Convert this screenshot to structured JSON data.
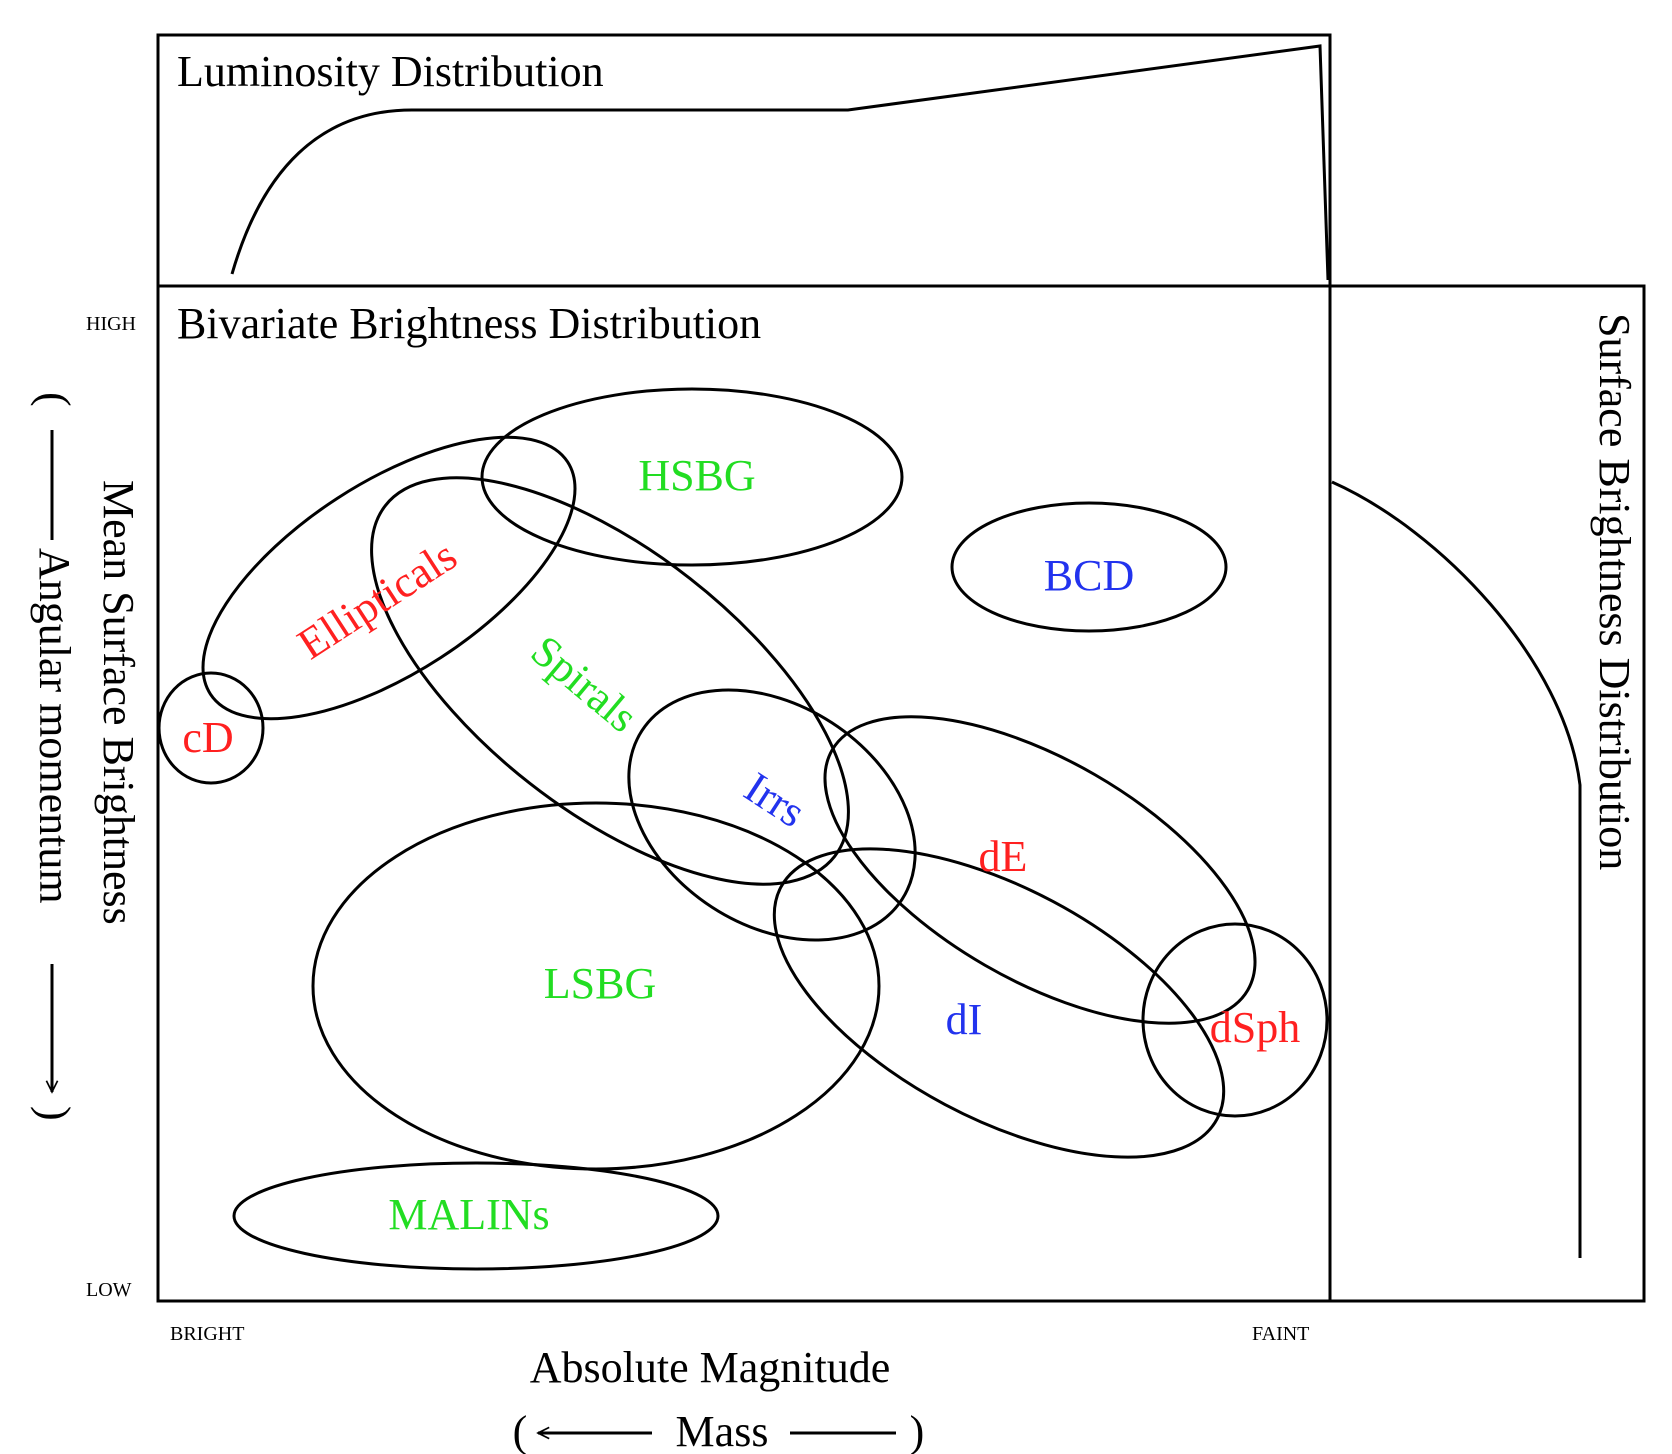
{
  "colors": {
    "red": "#ff2020",
    "green": "#22dd22",
    "blue": "#2233ee",
    "line": "#000000"
  },
  "panels": {
    "luminosity_title": "Luminosity Distribution",
    "bivariate_title": "Bivariate Brightness Distribution",
    "surface_title": "Surface Brightness Distribution"
  },
  "axes": {
    "x_label": "Absolute Magnitude",
    "x_sub_open": "(",
    "x_sub_word": "Mass",
    "x_sub_close": ")",
    "x_low_tick": "BRIGHT",
    "x_high_tick": "FAINT",
    "y_label": "Mean Surface Brightness",
    "y_sub_open": "(",
    "y_sub_word": "Angular momentum",
    "y_sub_close": ")",
    "y_high_tick": "HIGH",
    "y_low_tick": "LOW"
  },
  "galaxy_classes": [
    {
      "name": "HSBG",
      "color": "green"
    },
    {
      "name": "BCD",
      "color": "blue"
    },
    {
      "name": "Ellipticals",
      "color": "red"
    },
    {
      "name": "Spirals",
      "color": "green"
    },
    {
      "name": "cD",
      "color": "red"
    },
    {
      "name": "Irrs",
      "color": "blue"
    },
    {
      "name": "dE",
      "color": "red"
    },
    {
      "name": "LSBG",
      "color": "green"
    },
    {
      "name": "dI",
      "color": "blue"
    },
    {
      "name": "dSph",
      "color": "red"
    },
    {
      "name": "MALINs",
      "color": "green"
    }
  ]
}
